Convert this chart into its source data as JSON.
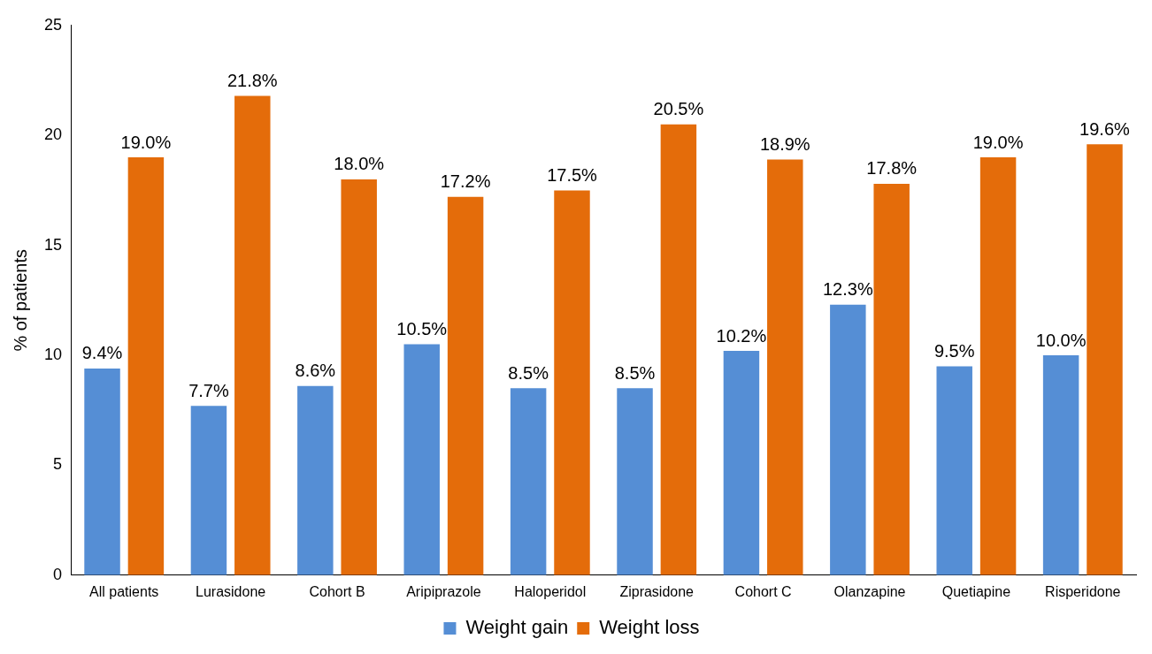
{
  "chart_data": {
    "type": "bar",
    "ylabel": "% of patients",
    "categories": [
      "All patients",
      "Lurasidone",
      "Cohort B",
      "Aripiprazole",
      "Haloperidol",
      "Ziprasidone",
      "Cohort C",
      "Olanzapine",
      "Quetiapine",
      "Risperidone"
    ],
    "series": [
      {
        "name": "Weight gain",
        "color": "#558ed5",
        "values": [
          9.4,
          7.7,
          8.6,
          10.5,
          8.5,
          8.5,
          10.2,
          12.3,
          9.5,
          10.0
        ],
        "value_labels": [
          "9.4%",
          "7.7%",
          "8.6%",
          "10.5%",
          "8.5%",
          "8.5%",
          "10.2%",
          "12.3%",
          "9.5%",
          "10.0%"
        ]
      },
      {
        "name": "Weight loss",
        "color": "#e46c0a",
        "values": [
          19.0,
          21.8,
          18.0,
          17.2,
          17.5,
          20.5,
          18.9,
          17.8,
          19.0,
          19.6
        ],
        "value_labels": [
          "19.0%",
          "21.8%",
          "18.0%",
          "17.2%",
          "17.5%",
          "20.5%",
          "18.9%",
          "17.8%",
          "19.0%",
          "19.6%"
        ]
      }
    ],
    "ylim": [
      0,
      25
    ],
    "yticks": [
      0,
      5,
      10,
      15,
      20,
      25
    ],
    "grid": false,
    "legend": "bottom"
  }
}
